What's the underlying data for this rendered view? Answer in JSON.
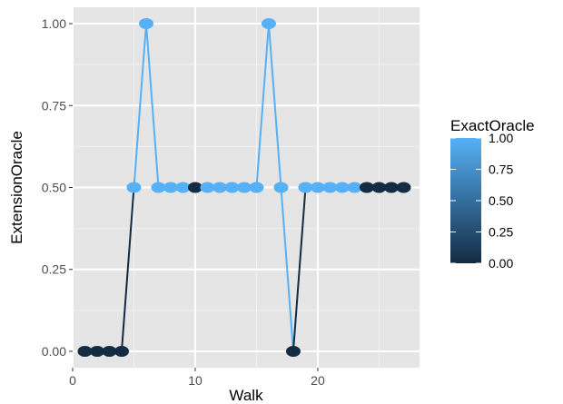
{
  "chart_data": {
    "type": "line",
    "xlabel": "Walk",
    "ylabel": "ExtensionOracle",
    "xlim": [
      0,
      28.3
    ],
    "ylim": [
      -0.05,
      1.05
    ],
    "x_ticks": [
      0,
      10,
      20
    ],
    "x_tick_labels": [
      "0",
      "10",
      "20"
    ],
    "y_ticks": [
      0,
      0.25,
      0.5,
      0.75,
      1
    ],
    "y_tick_labels": [
      "0.00",
      "0.25",
      "0.50",
      "0.75",
      "1.00"
    ],
    "grid": true,
    "legend": {
      "title": "ExactOracle",
      "position": "right",
      "type": "colorbar",
      "ticks": [
        0,
        0.25,
        0.5,
        0.75,
        1
      ],
      "tick_labels": [
        "0.00",
        "0.25",
        "0.50",
        "0.75",
        "1.00"
      ],
      "low_color": "#132B43",
      "high_color": "#56B1F7"
    },
    "x": [
      1,
      2,
      3,
      4,
      5,
      6,
      7,
      8,
      9,
      10,
      11,
      12,
      13,
      14,
      15,
      16,
      17,
      18,
      19,
      20,
      21,
      22,
      23,
      24,
      25,
      26,
      27
    ],
    "y": [
      0,
      0,
      0,
      0,
      0.5,
      1,
      0.5,
      0.5,
      0.5,
      0.5,
      0.5,
      0.5,
      0.5,
      0.5,
      0.5,
      1,
      0.5,
      0,
      0.5,
      0.5,
      0.5,
      0.5,
      0.5,
      0.5,
      0.5,
      0.5,
      0.5
    ],
    "color_values": [
      0,
      0,
      0,
      0,
      1,
      1,
      1,
      1,
      1,
      0,
      1,
      1,
      1,
      1,
      1,
      1,
      1,
      0,
      1,
      1,
      1,
      1,
      1,
      0,
      0,
      0,
      0
    ]
  },
  "colors": {
    "panel_background": "#E5E5E5",
    "grid_major": "#FFFFFF",
    "grid_minor": "#F2F2F2"
  }
}
